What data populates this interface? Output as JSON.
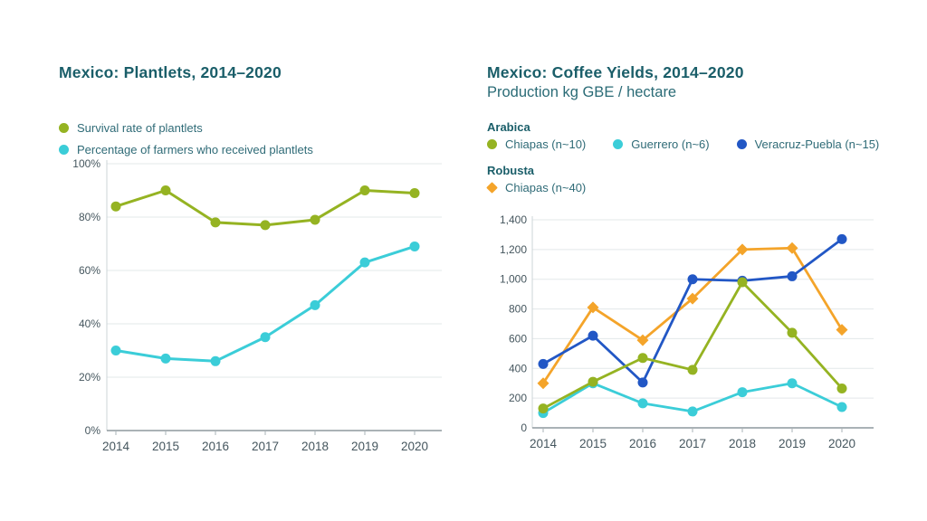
{
  "palette": {
    "background": "#ffffff",
    "title": "#1a5e69",
    "subtitle": "#2a6b76",
    "legend_text": "#2f6b77",
    "axis_text": "#45565e",
    "grid": "#e3e8ea",
    "axis_light": "#ccd4d7",
    "axis_dark": "#8e989d",
    "tick": "#aab3b7",
    "olive": "#95b322",
    "cyan": "#3bcdd8",
    "blue": "#2257c5",
    "orange": "#f4a42a"
  },
  "chart_data": [
    {
      "type": "line",
      "title": "Mexico: Plantlets, 2014–2020",
      "categories": [
        "2014",
        "2015",
        "2016",
        "2017",
        "2018",
        "2019",
        "2020"
      ],
      "series": [
        {
          "name": "Survival rate of plantlets",
          "color": "#95b322",
          "marker": "circle",
          "values": [
            84,
            90,
            78,
            77,
            79,
            90,
            89
          ]
        },
        {
          "name": "Percentage of farmers who received plantlets",
          "color": "#3bcdd8",
          "marker": "circle",
          "values": [
            30,
            27,
            26,
            35,
            47,
            63,
            69
          ]
        }
      ],
      "ylim": [
        0,
        100
      ],
      "yticks": [
        0,
        20,
        40,
        60,
        80,
        100
      ],
      "ytick_format": "percent",
      "grid": true,
      "legend_position": "top-left"
    },
    {
      "type": "line",
      "title": "Mexico: Coffee Yields, 2014–2020",
      "subtitle": "Production kg GBE / hectare",
      "categories": [
        "2014",
        "2015",
        "2016",
        "2017",
        "2018",
        "2019",
        "2020"
      ],
      "groups": [
        {
          "label": "Arabica",
          "series_indexes": [
            0,
            1,
            2
          ]
        },
        {
          "label": "Robusta",
          "series_indexes": [
            3
          ]
        }
      ],
      "series": [
        {
          "name": "Chiapas (n~10)",
          "group": "Arabica",
          "color": "#95b322",
          "marker": "circle",
          "values": [
            130,
            310,
            470,
            390,
            980,
            640,
            265
          ]
        },
        {
          "name": "Guerrero (n~6)",
          "group": "Arabica",
          "color": "#3bcdd8",
          "marker": "circle",
          "values": [
            100,
            300,
            165,
            110,
            240,
            300,
            140
          ]
        },
        {
          "name": "Veracruz-Puebla (n~15)",
          "group": "Arabica",
          "color": "#2257c5",
          "marker": "circle",
          "values": [
            430,
            620,
            305,
            1000,
            990,
            1020,
            1270
          ]
        },
        {
          "name": "Chiapas (n~40)",
          "group": "Robusta",
          "color": "#f4a42a",
          "marker": "diamond",
          "values": [
            300,
            810,
            590,
            870,
            1200,
            1210,
            660
          ]
        }
      ],
      "draw_order": [
        3,
        1,
        2,
        0
      ],
      "ylim": [
        0,
        1400
      ],
      "yticks": [
        0,
        200,
        400,
        600,
        800,
        1000,
        1200,
        1400
      ],
      "ytick_format": "thousands",
      "grid": true,
      "legend_position": "top-left"
    }
  ]
}
